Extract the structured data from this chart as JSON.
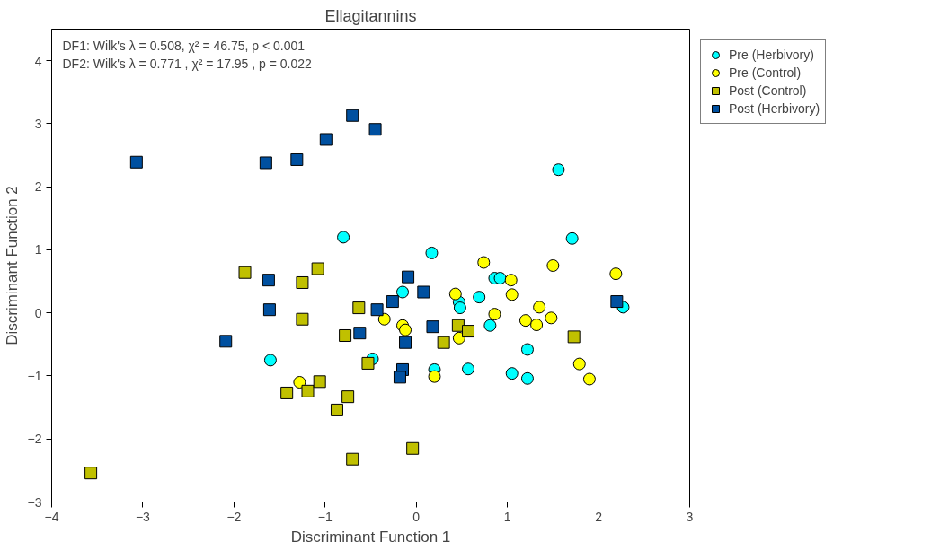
{
  "chart_data": {
    "type": "scatter",
    "title": "Ellagitannins",
    "xlabel": "Discriminant Function 1",
    "ylabel": "Discriminant Function 2",
    "xlim": [
      -4,
      3
    ],
    "ylim": [
      -3,
      4.5
    ],
    "xticks": [
      -4,
      -3,
      -2,
      -1,
      0,
      1,
      2,
      3
    ],
    "yticks": [
      -3,
      -2,
      -1,
      0,
      1,
      2,
      3,
      4
    ],
    "grid": false,
    "legend": "top right",
    "annotations": [
      "DF1: Wilk's λ = 0.508, χ² = 46.75, p < 0.001",
      "DF2: Wilk's λ = 0.771 , χ² = 17.95 , p = 0.022"
    ],
    "series": [
      {
        "name": "Pre (Herbivory)",
        "color": "#00ffff",
        "marker": "circle",
        "x": [
          1.56,
          -0.8,
          0.17,
          1.71,
          -0.15,
          0.47,
          0.48,
          0.69,
          0.86,
          0.92,
          2.27,
          0.81,
          1.22,
          -1.6,
          -0.48,
          0.2,
          0.57,
          1.05,
          1.22
        ],
        "values": [
          2.27,
          1.2,
          0.95,
          1.18,
          0.33,
          0.17,
          0.08,
          0.25,
          0.55,
          0.55,
          0.09,
          -0.2,
          -0.58,
          -0.75,
          -0.73,
          -0.9,
          -0.89,
          -0.96,
          -1.04
        ]
      },
      {
        "name": "Pre (Control)",
        "color": "#ffff00",
        "marker": "circle",
        "x": [
          0.74,
          1.04,
          1.5,
          2.19,
          0.43,
          1.05,
          1.35,
          0.86,
          -0.35,
          -0.15,
          -0.12,
          1.2,
          1.32,
          1.48,
          0.47,
          1.79,
          1.9,
          0.2,
          -1.28
        ],
        "values": [
          0.8,
          0.52,
          0.75,
          0.62,
          0.3,
          0.29,
          0.09,
          -0.02,
          -0.1,
          -0.2,
          -0.27,
          -0.12,
          -0.19,
          -0.08,
          -0.4,
          -0.81,
          -1.05,
          -1.01,
          -1.1
        ]
      },
      {
        "name": "Post (Control)",
        "color": "#c0c000",
        "marker": "square",
        "x": [
          -3.57,
          -1.88,
          -1.08,
          -1.25,
          -1.25,
          -0.63,
          -0.78,
          0.46,
          0.57,
          0.3,
          -0.53,
          1.73,
          -1.42,
          -1.19,
          -1.06,
          -0.87,
          -0.75,
          -0.7,
          -0.04
        ],
        "values": [
          -2.54,
          0.64,
          0.7,
          0.48,
          -0.1,
          0.08,
          -0.36,
          -0.2,
          -0.29,
          -0.47,
          -0.8,
          -0.38,
          -1.27,
          -1.24,
          -1.09,
          -1.54,
          -1.33,
          -2.32,
          -2.15
        ]
      },
      {
        "name": "Post (Herbivory)",
        "color": "#0050a0",
        "marker": "square",
        "x": [
          -3.07,
          -1.65,
          -1.31,
          -0.99,
          -0.7,
          -0.45,
          -1.62,
          -1.61,
          -2.09,
          -0.09,
          0.08,
          -0.26,
          -0.43,
          -0.62,
          0.18,
          -0.12,
          -0.15,
          -0.18,
          2.2
        ],
        "values": [
          2.39,
          2.38,
          2.43,
          2.75,
          3.13,
          2.91,
          0.52,
          0.05,
          -0.45,
          0.57,
          0.33,
          0.18,
          0.05,
          -0.32,
          -0.22,
          -0.47,
          -0.9,
          -1.02,
          0.18
        ]
      }
    ]
  }
}
